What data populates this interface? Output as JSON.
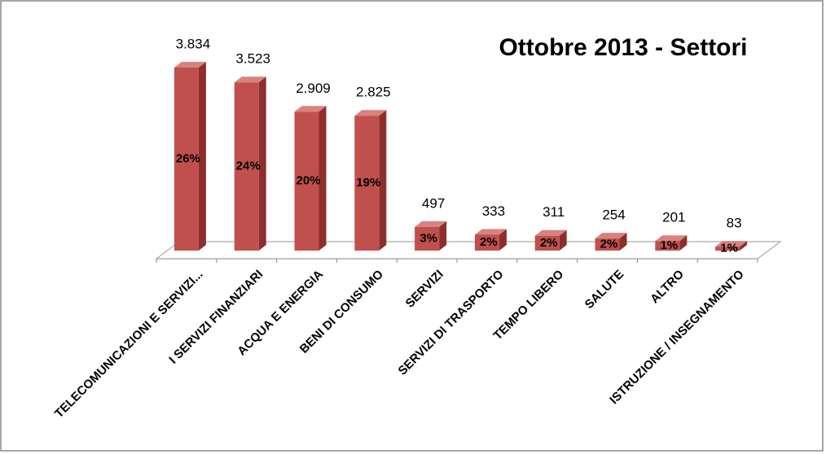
{
  "chart_data": {
    "type": "bar3d",
    "title": "Ottobre 2013 - Settori",
    "categories": [
      "TELECOMUNICAZIONI E SERVIZI...",
      "I SERVIZI FINANZIARI",
      "ACQUA E ENERGIA",
      "BENI DI CONSUMO",
      "SERVIZI",
      "SERVIZI DI TRASPORTO",
      "TEMPO LIBERO",
      "SALUTE",
      "ALTRO",
      "ISTRUZIONE / INSEGNAMENTO"
    ],
    "values": [
      3834,
      3523,
      2909,
      2825,
      497,
      333,
      311,
      254,
      201,
      83
    ],
    "value_labels": [
      "3.834",
      "3.523",
      "2.909",
      "2.825",
      "497",
      "333",
      "311",
      "254",
      "201",
      "83"
    ],
    "share_labels": [
      "26%",
      "24%",
      "20%",
      "19%",
      "3%",
      "2%",
      "2%",
      "2%",
      "1%",
      "1%"
    ],
    "color": "#c0504d"
  }
}
